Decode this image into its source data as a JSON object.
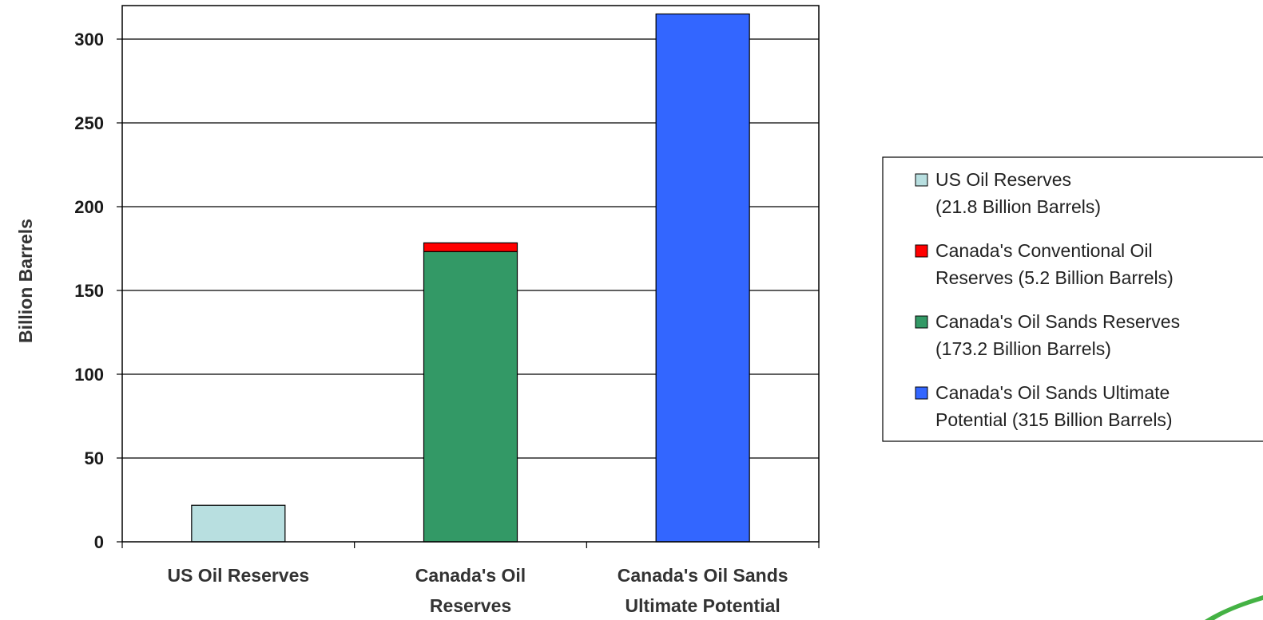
{
  "chart_data": {
    "type": "bar",
    "stacked": true,
    "categories": [
      [
        "US Oil Reserves"
      ],
      [
        "Canada's Oil",
        "Reserves"
      ],
      [
        "Canada's Oil Sands",
        "Ultimate Potential"
      ]
    ],
    "series": [
      {
        "name_lines": [
          "US Oil Reserves",
          "(21.8 Billion Barrels)"
        ],
        "color": "#b8dfe0",
        "values": [
          21.8,
          0,
          0
        ]
      },
      {
        "name_lines": [
          "Canada's Oil Sands Reserves",
          "(173.2 Billion Barrels)"
        ],
        "color": "#339966",
        "values": [
          0,
          173.2,
          0
        ]
      },
      {
        "name_lines": [
          "Canada's Conventional Oil",
          "Reserves (5.2 Billion Barrels)"
        ],
        "color": "#ff0000",
        "values": [
          0,
          5.2,
          0
        ]
      },
      {
        "name_lines": [
          "Canada's Oil Sands Ultimate",
          "Potential (315 Billion Barrels)"
        ],
        "color": "#3366ff",
        "values": [
          0,
          0,
          315
        ]
      }
    ],
    "legend_order": [
      0,
      2,
      1,
      3
    ],
    "ylabel": "Billion Barrels",
    "ylim": [
      0,
      320
    ],
    "yticks": [
      0,
      50,
      100,
      150,
      200,
      250,
      300
    ],
    "grid": true,
    "legend_position": "right"
  },
  "decor": {
    "color": "#44b244"
  }
}
